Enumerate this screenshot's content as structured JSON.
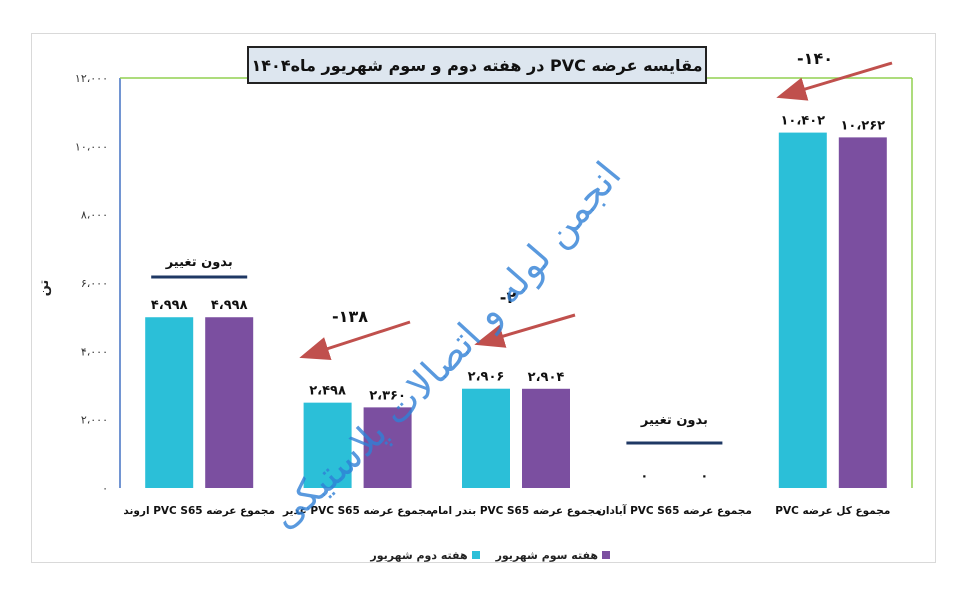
{
  "chart_data": {
    "type": "bar",
    "title": "مقایسه عرضه PVC در هفته دوم و سوم شهریور ماه۱۴۰۴",
    "ylabel": "تن",
    "ylim": [
      0,
      12000
    ],
    "y_ticks": [
      {
        "value": 0,
        "label": "۰"
      },
      {
        "value": 2000,
        "label": "۲،۰۰۰"
      },
      {
        "value": 4000,
        "label": "۴،۰۰۰"
      },
      {
        "value": 6000,
        "label": "۶،۰۰۰"
      },
      {
        "value": 8000,
        "label": "۸،۰۰۰"
      },
      {
        "value": 10000,
        "label": "۱۰،۰۰۰"
      },
      {
        "value": 12000,
        "label": "۱۲،۰۰۰"
      }
    ],
    "categories": [
      "مجموع عرضه PVC S65 اروند",
      "مجموع عرضه PVC S65 غدیر",
      "مجموع عرضه PVC S65 بندر امام",
      "مجموع عرضه PVC S65 آبادان",
      "مجموع کل عرضه PVC"
    ],
    "series": [
      {
        "name": "هفته دوم شهریور",
        "color": "#2bbfd8",
        "values": [
          4998,
          2498,
          2906,
          0,
          10402
        ],
        "labels": [
          "۴،۹۹۸",
          "۲،۴۹۸",
          "۲،۹۰۶",
          "۰",
          "۱۰،۴۰۲"
        ]
      },
      {
        "name": "هفته سوم شهریور",
        "color": "#7b4fa0",
        "values": [
          4998,
          2360,
          2904,
          0,
          10262
        ],
        "labels": [
          "۴،۹۹۸",
          "۲،۳۶۰",
          "۲،۹۰۴",
          "۰",
          "۱۰،۲۶۲"
        ]
      }
    ],
    "annotations": [
      {
        "category_index": 0,
        "text": "بدون تغییر"
      },
      {
        "category_index": 1,
        "text": "-۱۳۸"
      },
      {
        "category_index": 2,
        "text": "-۲"
      },
      {
        "category_index": 3,
        "text": "بدون تغییر"
      },
      {
        "category_index": 4,
        "text": "-۱۴۰"
      }
    ],
    "legend_position": "bottom",
    "grid": false
  },
  "watermark": "انجمن لوله و اتصالات پلاستیکی",
  "colors": {
    "arrow": "#c0504d",
    "underline": "#1f3864",
    "axis_left": "#4472c4",
    "axis_right": "#92d050"
  }
}
